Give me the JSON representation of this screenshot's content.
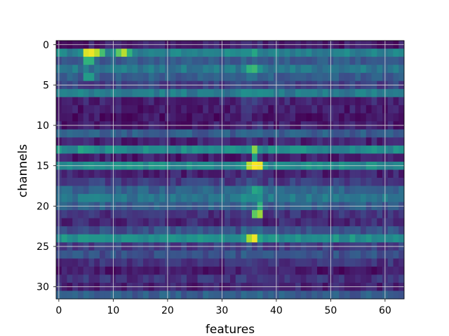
{
  "chart_data": {
    "type": "heatmap",
    "title": "",
    "xlabel": "features",
    "ylabel": "channels",
    "n_features": 64,
    "n_channels": 32,
    "x_ticks": [
      0,
      10,
      20,
      30,
      40,
      50,
      60
    ],
    "y_ticks": [
      0,
      5,
      10,
      15,
      20,
      25,
      30
    ],
    "x_range": [
      -0.5,
      63.5
    ],
    "y_range": [
      -0.5,
      31.5
    ],
    "y_inverted": true,
    "grid": true,
    "colormap": "viridis",
    "value_range": [
      0,
      1
    ],
    "row_base_values": [
      0.08,
      0.45,
      0.28,
      0.4,
      0.3,
      0.2,
      0.42,
      0.1,
      0.08,
      0.06,
      0.08,
      0.3,
      0.1,
      0.48,
      0.08,
      0.48,
      0.1,
      0.18,
      0.32,
      0.4,
      0.3,
      0.15,
      0.12,
      0.25,
      0.5,
      0.18,
      0.25,
      0.15,
      0.07,
      0.15,
      0.1,
      0.3
    ],
    "hotspots": [
      {
        "channel": 1,
        "feature": 5,
        "value": 0.95
      },
      {
        "channel": 1,
        "feature": 6,
        "value": 0.98
      },
      {
        "channel": 1,
        "feature": 7,
        "value": 0.9
      },
      {
        "channel": 1,
        "feature": 8,
        "value": 0.7
      },
      {
        "channel": 1,
        "feature": 11,
        "value": 0.75
      },
      {
        "channel": 1,
        "feature": 12,
        "value": 0.9
      },
      {
        "channel": 1,
        "feature": 13,
        "value": 0.65
      },
      {
        "channel": 1,
        "feature": 36,
        "value": 0.6
      },
      {
        "channel": 2,
        "feature": 5,
        "value": 0.65
      },
      {
        "channel": 2,
        "feature": 6,
        "value": 0.65
      },
      {
        "channel": 3,
        "feature": 35,
        "value": 0.65
      },
      {
        "channel": 3,
        "feature": 36,
        "value": 0.68
      },
      {
        "channel": 4,
        "feature": 5,
        "value": 0.55
      },
      {
        "channel": 4,
        "feature": 6,
        "value": 0.55
      },
      {
        "channel": 13,
        "feature": 4,
        "value": 0.6
      },
      {
        "channel": 13,
        "feature": 5,
        "value": 0.55
      },
      {
        "channel": 13,
        "feature": 36,
        "value": 0.82
      },
      {
        "channel": 14,
        "feature": 36,
        "value": 0.55
      },
      {
        "channel": 15,
        "feature": 35,
        "value": 0.9
      },
      {
        "channel": 15,
        "feature": 36,
        "value": 1.0
      },
      {
        "channel": 15,
        "feature": 37,
        "value": 0.98
      },
      {
        "channel": 18,
        "feature": 36,
        "value": 0.6
      },
      {
        "channel": 18,
        "feature": 37,
        "value": 0.55
      },
      {
        "channel": 20,
        "feature": 37,
        "value": 0.65
      },
      {
        "channel": 21,
        "feature": 36,
        "value": 0.75
      },
      {
        "channel": 21,
        "feature": 37,
        "value": 0.85
      },
      {
        "channel": 24,
        "feature": 35,
        "value": 0.88
      },
      {
        "channel": 24,
        "feature": 36,
        "value": 0.98
      },
      {
        "channel": 24,
        "feature": 37,
        "value": 0.6
      }
    ]
  }
}
